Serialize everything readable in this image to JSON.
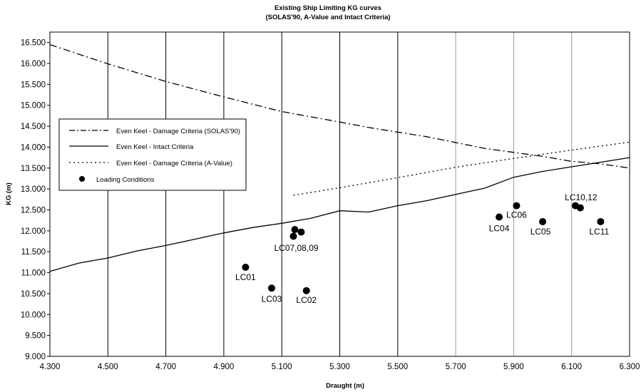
{
  "chart_data": {
    "type": "scatter",
    "title": "Existing Ship Limiting KG curves",
    "subtitle": "(SOLAS'90, A-Value and Intact Criteria)",
    "xlabel": "Draught (m)",
    "ylabel": "KG (m)",
    "xlim": [
      4.3,
      6.3
    ],
    "ylim": [
      9.0,
      16.75
    ],
    "x_ticks": [
      "4.300",
      "4.500",
      "4.700",
      "4.900",
      "5.100",
      "5.300",
      "5.500",
      "5.700",
      "5.900",
      "6.100",
      "6.300"
    ],
    "y_ticks": [
      "9.000",
      "9.500",
      "10.000",
      "10.500",
      "11.000",
      "11.500",
      "12.000",
      "12.500",
      "13.000",
      "13.500",
      "14.000",
      "14.500",
      "15.000",
      "15.500",
      "16.000",
      "16.500"
    ],
    "grid": "vertical",
    "legend_position": "left",
    "series": [
      {
        "name": "Even Keel -  Damage Criteria (SOLAS'90)",
        "style": "dash-dot",
        "points": [
          [
            4.3,
            16.45
          ],
          [
            4.5,
            15.99
          ],
          [
            4.7,
            15.57
          ],
          [
            4.9,
            15.2
          ],
          [
            5.1,
            14.85
          ],
          [
            5.3,
            14.6
          ],
          [
            5.4,
            14.47
          ],
          [
            5.6,
            14.25
          ],
          [
            5.8,
            13.97
          ],
          [
            6.0,
            13.78
          ],
          [
            6.1,
            13.66
          ],
          [
            6.2,
            13.6
          ],
          [
            6.3,
            13.5
          ]
        ]
      },
      {
        "name": "Even Keel -  Intact Criteria",
        "style": "solid",
        "points": [
          [
            4.3,
            11.03
          ],
          [
            4.4,
            11.23
          ],
          [
            4.5,
            11.35
          ],
          [
            4.6,
            11.52
          ],
          [
            4.7,
            11.65
          ],
          [
            4.8,
            11.8
          ],
          [
            4.9,
            11.95
          ],
          [
            5.0,
            12.08
          ],
          [
            5.1,
            12.18
          ],
          [
            5.2,
            12.3
          ],
          [
            5.3,
            12.48
          ],
          [
            5.4,
            12.45
          ],
          [
            5.5,
            12.6
          ],
          [
            5.6,
            12.72
          ],
          [
            5.7,
            12.87
          ],
          [
            5.8,
            13.02
          ],
          [
            5.9,
            13.28
          ],
          [
            6.0,
            13.42
          ],
          [
            6.1,
            13.53
          ],
          [
            6.2,
            13.64
          ],
          [
            6.3,
            13.75
          ]
        ]
      },
      {
        "name": "Even Keel -  Damage Criteria (A-Value)",
        "style": "dotted",
        "points": [
          [
            5.14,
            12.85
          ],
          [
            5.3,
            13.03
          ],
          [
            5.5,
            13.27
          ],
          [
            5.7,
            13.52
          ],
          [
            5.9,
            13.73
          ],
          [
            6.1,
            13.93
          ],
          [
            6.3,
            14.12
          ]
        ]
      },
      {
        "name": "Loading Conditions",
        "style": "marker",
        "points": [
          [
            4.975,
            11.13
          ],
          [
            5.065,
            10.63
          ],
          [
            5.185,
            10.57
          ],
          [
            5.14,
            11.87
          ],
          [
            5.145,
            12.03
          ],
          [
            5.167,
            11.97
          ],
          [
            5.85,
            12.33
          ],
          [
            5.91,
            12.6
          ],
          [
            6.0,
            12.22
          ],
          [
            6.113,
            12.6
          ],
          [
            6.13,
            12.55
          ],
          [
            6.2,
            12.22
          ]
        ]
      }
    ],
    "annotations": [
      {
        "text": "LC01",
        "x": 4.975,
        "y": 11.13
      },
      {
        "text": "LC03",
        "x": 5.065,
        "y": 10.63
      },
      {
        "text": "LC02",
        "x": 5.185,
        "y": 10.57
      },
      {
        "text": "LC07,08,09",
        "x": 5.15,
        "y": 11.95
      },
      {
        "text": "LC04",
        "x": 5.85,
        "y": 12.33
      },
      {
        "text": "LC06",
        "x": 5.91,
        "y": 12.6
      },
      {
        "text": "LC05",
        "x": 6.0,
        "y": 12.22
      },
      {
        "text": "LC10,12",
        "x": 6.12,
        "y": 12.58
      },
      {
        "text": "LC11",
        "x": 6.2,
        "y": 12.22
      }
    ]
  }
}
